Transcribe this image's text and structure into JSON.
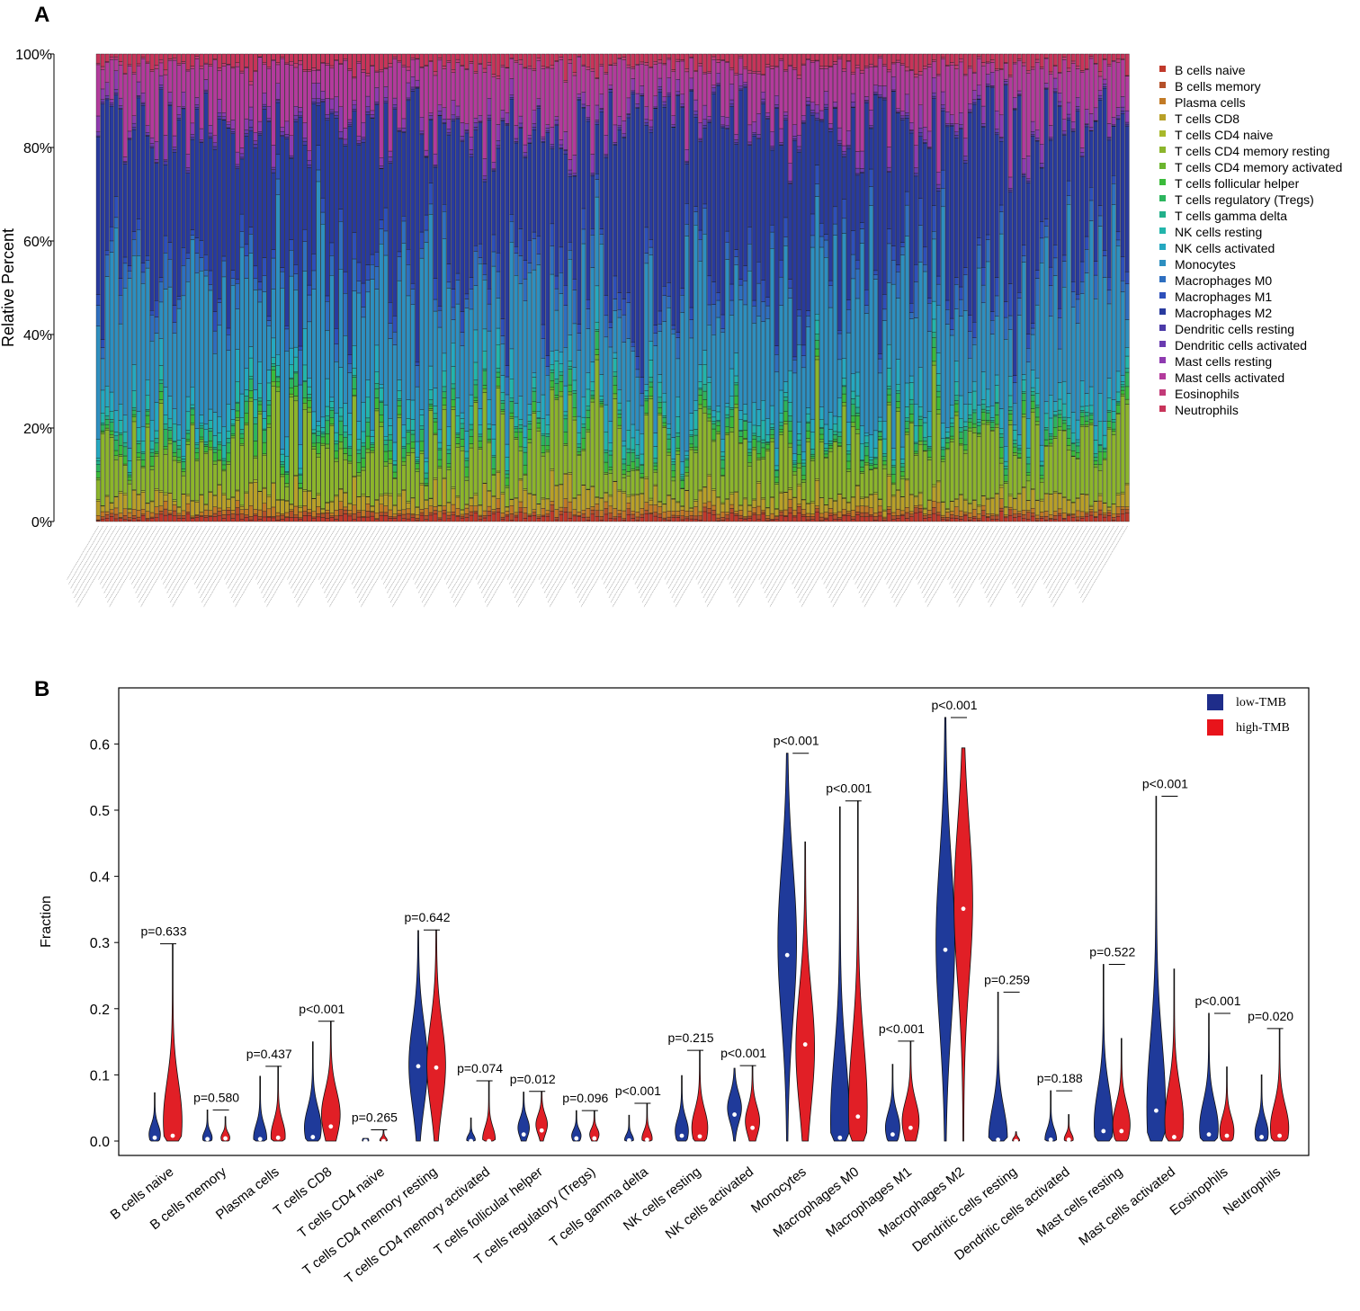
{
  "panels": {
    "a_label": "A",
    "b_label": "B"
  },
  "chart_data": [
    {
      "type": "bar",
      "stacked": true,
      "panel": "A",
      "title": "",
      "ylabel": "Relative Percent",
      "xlabel": "",
      "ylim": [
        0,
        100
      ],
      "y_ticks": [
        "0%",
        "20%",
        "40%",
        "60%",
        "80%",
        "100%"
      ],
      "n_samples": 230,
      "series": [
        {
          "name": "B cells naive",
          "color": "#c0392b",
          "mean": 0.8
        },
        {
          "name": "B cells memory",
          "color": "#b5502a",
          "mean": 0.6
        },
        {
          "name": "Plasma cells",
          "color": "#c27a25",
          "mean": 0.9
        },
        {
          "name": "T cells CD8",
          "color": "#b8a028",
          "mean": 2.6
        },
        {
          "name": "T cells CD4 naive",
          "color": "#a8b82a",
          "mean": 0.2
        },
        {
          "name": "T cells CD4 memory resting",
          "color": "#8cb52c",
          "mean": 10.5
        },
        {
          "name": "T cells CD4 memory activated",
          "color": "#6bb52e",
          "mean": 0.5
        },
        {
          "name": "T cells follicular helper",
          "color": "#3bbb3b",
          "mean": 1.2
        },
        {
          "name": "T cells regulatory (Tregs)",
          "color": "#2cb55e",
          "mean": 1.4
        },
        {
          "name": "T cells gamma delta",
          "color": "#22b08a",
          "mean": 0.6
        },
        {
          "name": "NK cells resting",
          "color": "#22b5ab",
          "mean": 2.0
        },
        {
          "name": "NK cells activated",
          "color": "#25a8c0",
          "mean": 3.0
        },
        {
          "name": "Monocytes",
          "color": "#2d8fc0",
          "mean": 22.0
        },
        {
          "name": "Macrophages M0",
          "color": "#2e6fc0",
          "mean": 3.5
        },
        {
          "name": "Macrophages M1",
          "color": "#2d4fbb",
          "mean": 2.5
        },
        {
          "name": "Macrophages M2",
          "color": "#283a9e",
          "mean": 30.0
        },
        {
          "name": "Dendritic cells resting",
          "color": "#4b3aa8",
          "mean": 0.3
        },
        {
          "name": "Dendritic cells activated",
          "color": "#6a3bb0",
          "mean": 0.5
        },
        {
          "name": "Mast cells resting",
          "color": "#8e3ab0",
          "mean": 2.0
        },
        {
          "name": "Mast cells activated",
          "color": "#b33a9c",
          "mean": 9.0
        },
        {
          "name": "Eosinophils",
          "color": "#c23a78",
          "mean": 0.4
        },
        {
          "name": "Neutrophils",
          "color": "#c8345a",
          "mean": 2.0
        }
      ]
    },
    {
      "type": "violin",
      "panel": "B",
      "ylabel": "Fraction",
      "xlabel": "",
      "ylim": [
        0,
        0.67
      ],
      "y_ticks": [
        "0.0",
        "0.1",
        "0.2",
        "0.3",
        "0.4",
        "0.5",
        "0.6"
      ],
      "legend": [
        {
          "name": "low-TMB",
          "color": "#1f2d8a"
        },
        {
          "name": "high-TMB",
          "color": "#e8141b"
        }
      ],
      "groups_color": {
        "low": "#1f3a9a",
        "high": "#e11f26"
      },
      "categories": [
        {
          "name": "B cells naive",
          "p": "p=0.633",
          "low": {
            "max": 0.073,
            "median": 0.005,
            "peak": 0.01
          },
          "high": {
            "max": 0.298,
            "median": 0.008,
            "peak": 0.03
          }
        },
        {
          "name": "B cells memory",
          "p": "p=0.580",
          "low": {
            "max": 0.047,
            "median": 0.003,
            "peak": 0.005
          },
          "high": {
            "max": 0.037,
            "median": 0.004,
            "peak": 0.005
          }
        },
        {
          "name": "Plasma cells",
          "p": "p=0.437",
          "low": {
            "max": 0.098,
            "median": 0.003,
            "peak": 0.005
          },
          "high": {
            "max": 0.113,
            "median": 0.005,
            "peak": 0.008
          }
        },
        {
          "name": "T cells CD8",
          "p": "p<0.001",
          "low": {
            "max": 0.15,
            "median": 0.006,
            "peak": 0.02
          },
          "high": {
            "max": 0.181,
            "median": 0.022,
            "peak": 0.04
          }
        },
        {
          "name": "T cells CD4 naive",
          "p": "p=0.265",
          "low": {
            "max": 0.004,
            "median": 0.0,
            "peak": 0.001
          },
          "high": {
            "max": 0.017,
            "median": 0.0,
            "peak": 0.001
          }
        },
        {
          "name": "T cells CD4 memory resting",
          "p": "p=0.642",
          "low": {
            "max": 0.318,
            "median": 0.113,
            "peak": 0.115
          },
          "high": {
            "max": 0.319,
            "median": 0.111,
            "peak": 0.115
          }
        },
        {
          "name": "T cells CD4 memory activated",
          "p": "p=0.074",
          "low": {
            "max": 0.035,
            "median": 0.0,
            "peak": 0.002
          },
          "high": {
            "max": 0.091,
            "median": 0.0,
            "peak": 0.003
          }
        },
        {
          "name": "T cells follicular helper",
          "p": "p=0.012",
          "low": {
            "max": 0.074,
            "median": 0.01,
            "peak": 0.02
          },
          "high": {
            "max": 0.075,
            "median": 0.016,
            "peak": 0.025
          }
        },
        {
          "name": "T cells regulatory (Tregs)",
          "p": "p=0.096",
          "low": {
            "max": 0.046,
            "median": 0.004,
            "peak": 0.008
          },
          "high": {
            "max": 0.045,
            "median": 0.004,
            "peak": 0.01
          }
        },
        {
          "name": "T cells gamma delta",
          "p": "p<0.001",
          "low": {
            "max": 0.039,
            "median": 0.001,
            "peak": 0.002
          },
          "high": {
            "max": 0.057,
            "median": 0.002,
            "peak": 0.004
          }
        },
        {
          "name": "NK cells resting",
          "p": "p=0.215",
          "low": {
            "max": 0.099,
            "median": 0.008,
            "peak": 0.015
          },
          "high": {
            "max": 0.137,
            "median": 0.007,
            "peak": 0.02
          }
        },
        {
          "name": "NK cells activated",
          "p": "p<0.001",
          "low": {
            "max": 0.11,
            "median": 0.04,
            "peak": 0.05
          },
          "high": {
            "max": 0.114,
            "median": 0.02,
            "peak": 0.03
          }
        },
        {
          "name": "Monocytes",
          "p": "p<0.001",
          "low": {
            "max": 0.586,
            "median": 0.281,
            "peak": 0.3
          },
          "high": {
            "max": 0.452,
            "median": 0.146,
            "peak": 0.14
          }
        },
        {
          "name": "Macrophages M0",
          "p": "p<0.001",
          "low": {
            "max": 0.505,
            "median": 0.005,
            "peak": 0.03
          },
          "high": {
            "max": 0.514,
            "median": 0.037,
            "peak": 0.05
          }
        },
        {
          "name": "Macrophages M1",
          "p": "p<0.001",
          "low": {
            "max": 0.116,
            "median": 0.01,
            "peak": 0.02
          },
          "high": {
            "max": 0.151,
            "median": 0.02,
            "peak": 0.03
          }
        },
        {
          "name": "Macrophages M2",
          "p": "p<0.001",
          "low": {
            "max": 0.64,
            "median": 0.289,
            "peak": 0.3
          },
          "high": {
            "max": 0.594,
            "median": 0.351,
            "peak": 0.36
          }
        },
        {
          "name": "Dendritic cells resting",
          "p": "p=0.259",
          "low": {
            "max": 0.225,
            "median": 0.002,
            "peak": 0.005
          },
          "high": {
            "max": 0.014,
            "median": 0.0,
            "peak": 0.001
          }
        },
        {
          "name": "Dendritic cells activated",
          "p": "p=0.188",
          "low": {
            "max": 0.076,
            "median": 0.002,
            "peak": 0.003
          },
          "high": {
            "max": 0.04,
            "median": 0.002,
            "peak": 0.003
          }
        },
        {
          "name": "Mast cells resting",
          "p": "p=0.522",
          "low": {
            "max": 0.267,
            "median": 0.015,
            "peak": 0.025
          },
          "high": {
            "max": 0.155,
            "median": 0.015,
            "peak": 0.025
          }
        },
        {
          "name": "Mast cells activated",
          "p": "p<0.001",
          "low": {
            "max": 0.521,
            "median": 0.046,
            "peak": 0.05
          },
          "high": {
            "max": 0.26,
            "median": 0.006,
            "peak": 0.03
          }
        },
        {
          "name": "Eosinophils",
          "p": "p<0.001",
          "low": {
            "max": 0.193,
            "median": 0.01,
            "peak": 0.02
          },
          "high": {
            "max": 0.112,
            "median": 0.008,
            "peak": 0.015
          }
        },
        {
          "name": "Neutrophils",
          "p": "p=0.020",
          "low": {
            "max": 0.1,
            "median": 0.006,
            "peak": 0.012
          },
          "high": {
            "max": 0.17,
            "median": 0.008,
            "peak": 0.02
          }
        }
      ]
    }
  ]
}
